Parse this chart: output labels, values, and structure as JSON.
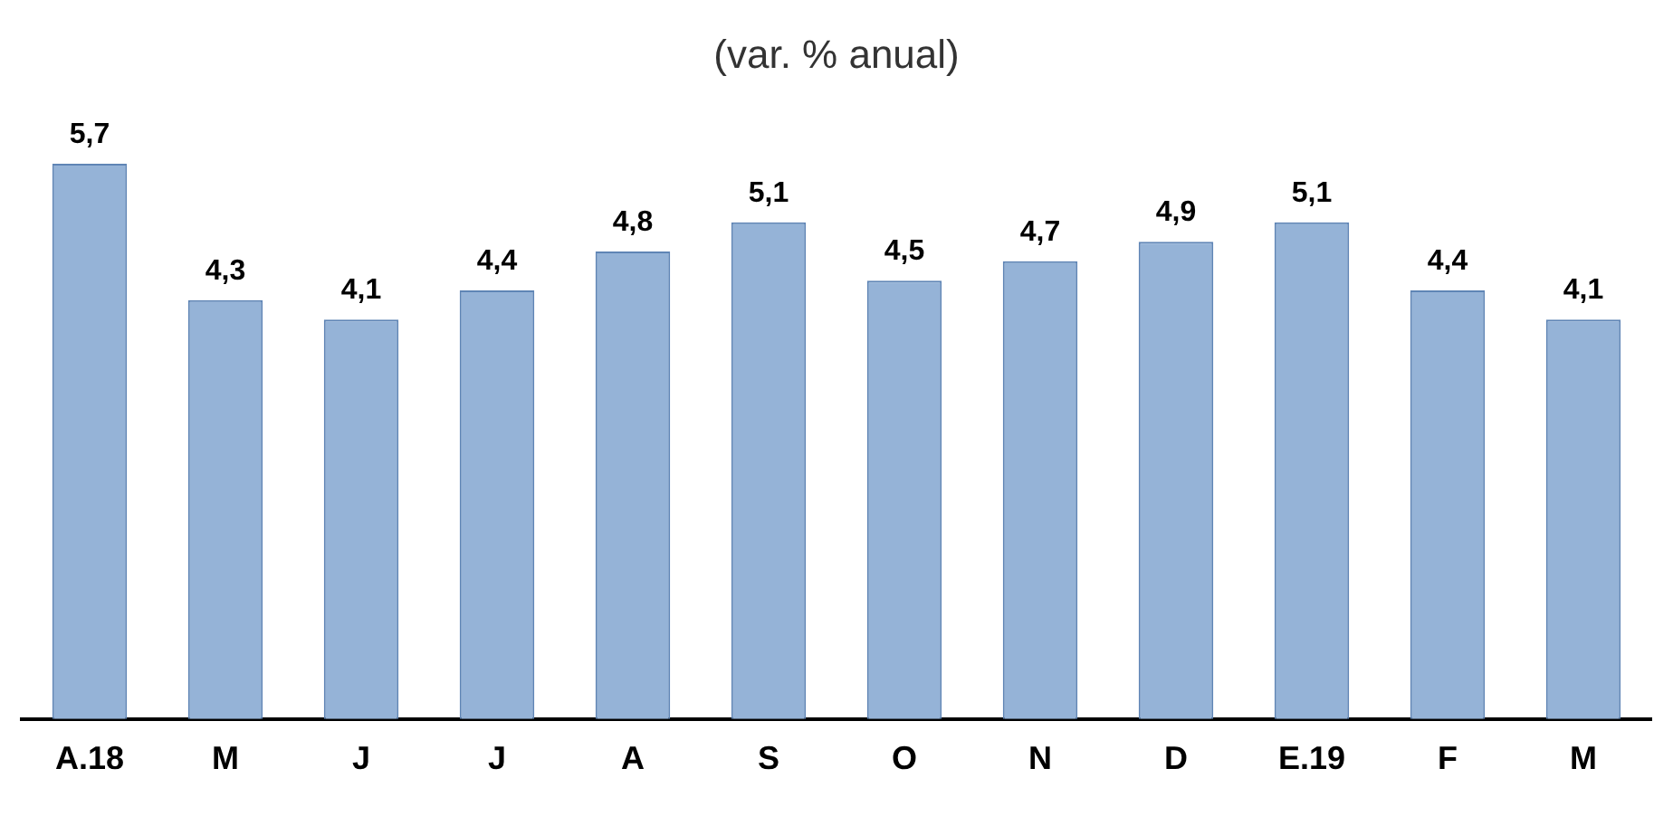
{
  "chart_data": {
    "type": "bar",
    "title": "(var. % anual)",
    "categories": [
      "A.18",
      "M",
      "J",
      "J",
      "A",
      "S",
      "O",
      "N",
      "D",
      "E.19",
      "F",
      "M"
    ],
    "values": [
      5.7,
      4.3,
      4.1,
      4.4,
      4.8,
      5.1,
      4.5,
      4.7,
      4.9,
      5.1,
      4.4,
      4.1
    ],
    "value_labels": [
      "5,7",
      "4,3",
      "4,1",
      "4,4",
      "4,8",
      "5,1",
      "4,5",
      "4,7",
      "4,9",
      "5,1",
      "4,4",
      "4,1"
    ],
    "color": "#95b3d7",
    "legend": false
  }
}
